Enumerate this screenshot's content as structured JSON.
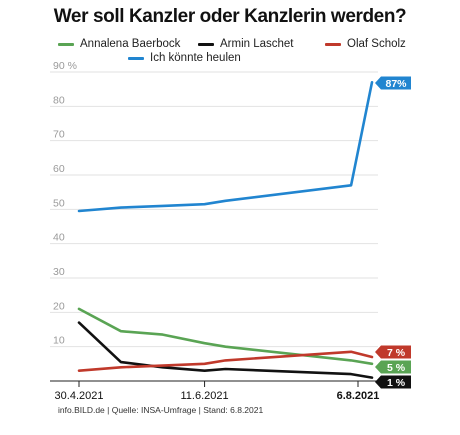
{
  "chart_data": {
    "type": "line",
    "title": "Wer soll Kanzler oder Kanzlerin werden?",
    "xlabel": "",
    "ylabel": "",
    "ylim": [
      0,
      90
    ],
    "yticks": [
      10,
      20,
      30,
      40,
      50,
      60,
      70,
      80,
      90
    ],
    "ytick_labels": [
      "10",
      "20",
      "30",
      "40",
      "50",
      "60",
      "70",
      "80",
      "90 %"
    ],
    "xticks": [
      "30.4.2021",
      "11.6.2021",
      "6.8.2021"
    ],
    "x": [
      "2021-04-30",
      "2021-05-14",
      "2021-05-28",
      "2021-06-11",
      "2021-06-18",
      "2021-07-30",
      "2021-08-06"
    ],
    "grid": "horizontal",
    "legend_position": "top",
    "series": [
      {
        "name": "Annalena Baerbock",
        "color": "#5aa454",
        "values": [
          21,
          14.5,
          13.5,
          11,
          10,
          6,
          5
        ],
        "end_label": "5 %",
        "label_color": "#5aa454"
      },
      {
        "name": "Armin Laschet",
        "color": "#111111",
        "values": [
          17,
          5.5,
          4,
          3,
          3.5,
          2,
          1
        ],
        "end_label": "1 %",
        "label_color": "#111111"
      },
      {
        "name": "Olaf Scholz",
        "color": "#c0392b",
        "values": [
          3,
          4,
          4.5,
          5,
          6,
          8.5,
          7
        ],
        "end_label": "7 %",
        "label_color": "#c0392b"
      },
      {
        "name": "Ich könnte heulen",
        "color": "#2185d0",
        "values": [
          49.5,
          50.5,
          51,
          51.5,
          52.5,
          57,
          87
        ],
        "end_label": "87%",
        "label_color": "#2185d0"
      }
    ],
    "source": "info.BILD.de | Quelle: INSA-Umfrage | Stand: 6.8.2021"
  }
}
